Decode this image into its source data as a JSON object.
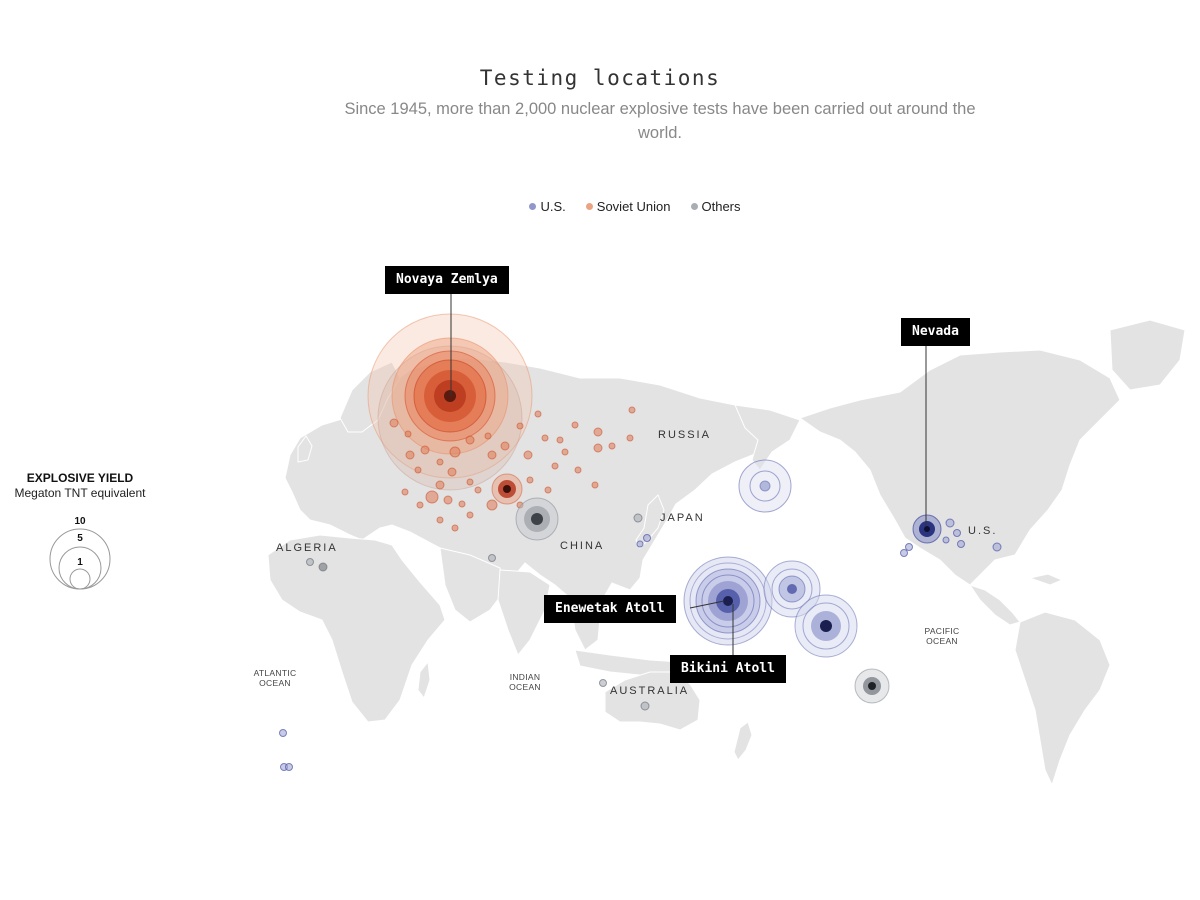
{
  "header": {
    "title": "Testing locations",
    "subtitle": "Since 1945, more than 2,000 nuclear explosive tests have been carried out around the world."
  },
  "legend": {
    "items": [
      {
        "label": "U.S.",
        "color": "#6b74b8"
      },
      {
        "label": "Soviet Union",
        "color": "#e8936c"
      },
      {
        "label": "Others",
        "color": "#a9aeb5"
      }
    ]
  },
  "yield_legend": {
    "heading": "EXPLOSIVE YIELD",
    "subheading": "Megaton TNT equivalent",
    "values": [
      "10",
      "5",
      "1"
    ]
  },
  "callouts": {
    "novaya_zemlya": "Novaya Zemlya",
    "nevada": "Nevada",
    "enewetak": "Enewetak Atoll",
    "bikini": "Bikini Atoll"
  },
  "places": {
    "russia": "RUSSIA",
    "japan": "JAPAN",
    "china": "CHINA",
    "algeria": "ALGERIA",
    "us": "U.S.",
    "australia": "AUSTRALIA"
  },
  "oceans": {
    "atlantic": [
      "ATLANTIC",
      "OCEAN"
    ],
    "indian": [
      "INDIAN",
      "OCEAN"
    ],
    "pacific": [
      "PACIFIC",
      "OCEAN"
    ]
  },
  "colors": {
    "land": "#e3e3e3",
    "us": "#3f4a9e",
    "soviet": "#d9532f",
    "others": "#8c9299"
  }
}
